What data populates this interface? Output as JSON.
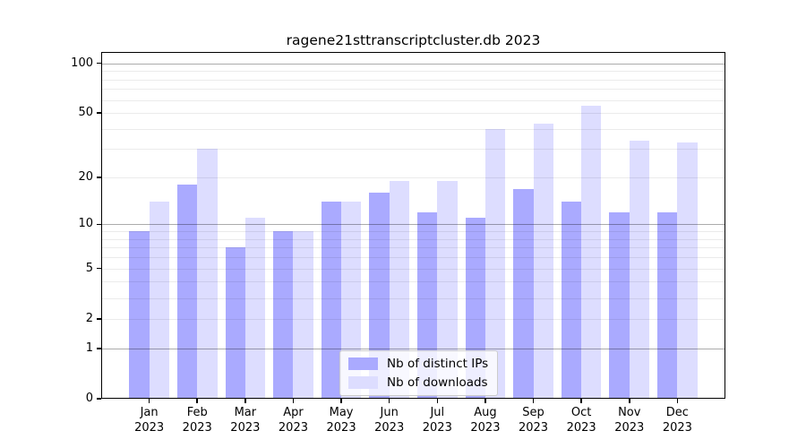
{
  "chart_data": {
    "type": "bar",
    "title": "ragene21sttranscriptcluster.db 2023",
    "categories": [
      "Jan 2023",
      "Feb 2023",
      "Mar 2023",
      "Apr 2023",
      "May 2023",
      "Jun 2023",
      "Jul 2023",
      "Aug 2023",
      "Sep 2023",
      "Oct 2023",
      "Nov 2023",
      "Dec 2023"
    ],
    "series": [
      {
        "name": "Nb of distinct IPs",
        "color": "#aaaaff",
        "values": [
          9,
          18,
          7,
          9,
          14,
          16,
          12,
          11,
          17,
          14,
          12,
          12
        ]
      },
      {
        "name": "Nb of downloads",
        "color": "#ddddff",
        "values": [
          14,
          30,
          11,
          9,
          14,
          19,
          19,
          40,
          43,
          55,
          34,
          33
        ]
      }
    ],
    "xlabel": "",
    "ylabel": "",
    "yscale": "log10(value+1)",
    "ylim": [
      0,
      117
    ],
    "ytick_values": [
      100,
      50,
      20,
      10,
      5,
      2,
      1,
      0
    ],
    "minor_gridlines": [
      2,
      3,
      4,
      5,
      6,
      7,
      8,
      9,
      20,
      30,
      40,
      50,
      60,
      70,
      80,
      90
    ],
    "major_gridlines": [
      1,
      10,
      100
    ],
    "grid": true,
    "legend_position": "bottom-center"
  },
  "style": {
    "major_grid_color": "rgba(0,0,0,0.33)",
    "minor_grid_color": "rgba(0,0,0,0.08)",
    "spine_color": "#000000",
    "background_color": "#ffffff"
  }
}
